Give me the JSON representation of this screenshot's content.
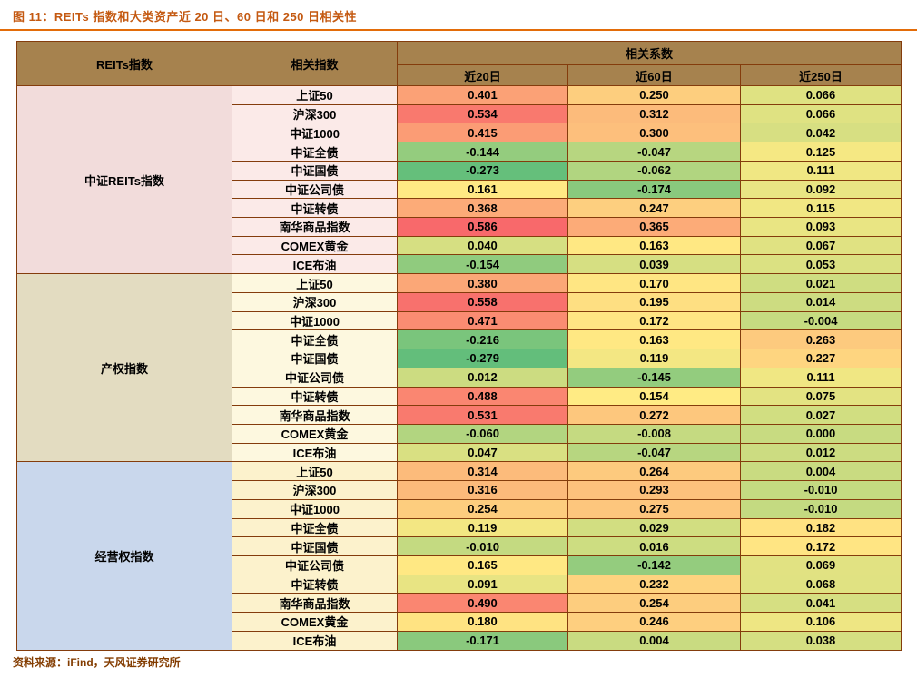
{
  "title": {
    "text": "图 11：REITs 指数和大类资产近 20 日、60 日和 250 日相关性"
  },
  "footer": {
    "text": "资料来源：iFind，天风证券研究所"
  },
  "colors": {
    "title_color": "#C45911",
    "rule_color": "#E36C09",
    "border_color": "#843C0C",
    "header_bg": "#A6824E",
    "footer_color": "#833C00"
  },
  "table": {
    "corner_header": "REITs指数",
    "index_header": "相关指数",
    "corr_group_header": "相关系数",
    "period_headers": [
      "近20日",
      "近60日",
      "近250日"
    ],
    "group_styles": [
      {
        "label_bg": "#F2DCDB",
        "asset_bg": "#FBEAE8"
      },
      {
        "label_bg": "#E3DCC1",
        "asset_bg": "#FDF8DF"
      },
      {
        "label_bg": "#C9D7EC",
        "asset_bg": "#FCF2CC"
      }
    ]
  },
  "chart_data": {
    "type": "heatmap",
    "title": "REITs 指数和大类资产近 20 日、60 日和 250 日相关性",
    "columns": [
      "近20日",
      "近60日",
      "近250日"
    ],
    "color_scale": {
      "min_color": "#63BE7B",
      "mid_color": "#FFEB84",
      "max_color": "#F8696B",
      "domain_min": -0.279,
      "domain_max": 0.586
    },
    "groups": [
      {
        "name": "中证REITs指数",
        "rows": [
          {
            "asset": "上证50",
            "values": [
              0.401,
              0.25,
              0.066
            ]
          },
          {
            "asset": "沪深300",
            "values": [
              0.534,
              0.312,
              0.066
            ]
          },
          {
            "asset": "中证1000",
            "values": [
              0.415,
              0.3,
              0.042
            ]
          },
          {
            "asset": "中证全债",
            "values": [
              -0.144,
              -0.047,
              0.125
            ]
          },
          {
            "asset": "中证国债",
            "values": [
              -0.273,
              -0.062,
              0.111
            ]
          },
          {
            "asset": "中证公司债",
            "values": [
              0.161,
              -0.174,
              0.092
            ]
          },
          {
            "asset": "中证转债",
            "values": [
              0.368,
              0.247,
              0.115
            ]
          },
          {
            "asset": "南华商品指数",
            "values": [
              0.586,
              0.365,
              0.093
            ]
          },
          {
            "asset": "COMEX黄金",
            "values": [
              0.04,
              0.163,
              0.067
            ]
          },
          {
            "asset": "ICE布油",
            "values": [
              -0.154,
              0.039,
              0.053
            ]
          }
        ]
      },
      {
        "name": "产权指数",
        "rows": [
          {
            "asset": "上证50",
            "values": [
              0.38,
              0.17,
              0.021
            ]
          },
          {
            "asset": "沪深300",
            "values": [
              0.558,
              0.195,
              0.014
            ]
          },
          {
            "asset": "中证1000",
            "values": [
              0.471,
              0.172,
              -0.004
            ]
          },
          {
            "asset": "中证全债",
            "values": [
              -0.216,
              0.163,
              0.263
            ]
          },
          {
            "asset": "中证国债",
            "values": [
              -0.279,
              0.119,
              0.227
            ]
          },
          {
            "asset": "中证公司债",
            "values": [
              0.012,
              -0.145,
              0.111
            ]
          },
          {
            "asset": "中证转债",
            "values": [
              0.488,
              0.154,
              0.075
            ]
          },
          {
            "asset": "南华商品指数",
            "values": [
              0.531,
              0.272,
              0.027
            ]
          },
          {
            "asset": "COMEX黄金",
            "values": [
              -0.06,
              -0.008,
              0.0
            ]
          },
          {
            "asset": "ICE布油",
            "values": [
              0.047,
              -0.047,
              0.012
            ]
          }
        ]
      },
      {
        "name": "经营权指数",
        "rows": [
          {
            "asset": "上证50",
            "values": [
              0.314,
              0.264,
              0.004
            ]
          },
          {
            "asset": "沪深300",
            "values": [
              0.316,
              0.293,
              -0.01
            ]
          },
          {
            "asset": "中证1000",
            "values": [
              0.254,
              0.275,
              -0.01
            ]
          },
          {
            "asset": "中证全债",
            "values": [
              0.119,
              0.029,
              0.182
            ]
          },
          {
            "asset": "中证国债",
            "values": [
              -0.01,
              0.016,
              0.172
            ]
          },
          {
            "asset": "中证公司债",
            "values": [
              0.165,
              -0.142,
              0.069
            ]
          },
          {
            "asset": "中证转债",
            "values": [
              0.091,
              0.232,
              0.068
            ]
          },
          {
            "asset": "南华商品指数",
            "values": [
              0.49,
              0.254,
              0.041
            ]
          },
          {
            "asset": "COMEX黄金",
            "values": [
              0.18,
              0.246,
              0.106
            ]
          },
          {
            "asset": "ICE布油",
            "values": [
              -0.171,
              0.004,
              0.038
            ]
          }
        ]
      }
    ]
  }
}
